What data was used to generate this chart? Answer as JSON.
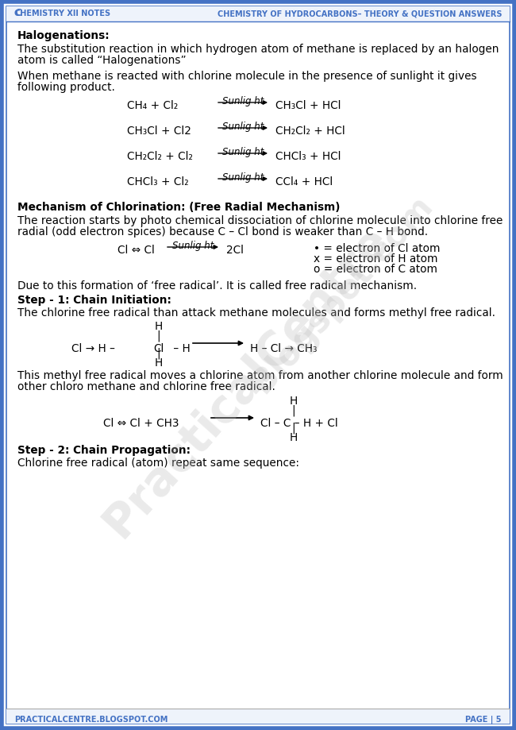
{
  "page_bg": "#ffffff",
  "border_color": "#4472c4",
  "header_left": "Chemistry XII Notes",
  "header_right": "Chemistry Of Hydrocarbons– Theory & Question Answers",
  "footer_left": "PracticalCentre.Blogspot.com",
  "footer_right": "Page | 5",
  "body_text_color": "#000000",
  "title1": "Halogenations:",
  "para1a": "The substitution reaction in which hydrogen atom of methane is replaced by an halogen",
  "para1b": "atom is called “Halogenations”",
  "para2a": "When methane is reacted with chlorine molecule in the presence of sunlight it gives",
  "para2b": "following product.",
  "rxn1_left": "CH₄ + Cl₂",
  "rxn1_label": "Sunlig ht",
  "rxn1_right": "CH₃Cl + HCl",
  "rxn2_left": "CH₃Cl + Cl2",
  "rxn2_label": "Sunlig ht",
  "rxn2_right": "CH₂Cl₂ + HCl",
  "rxn3_left": "CH₂Cl₂ + Cl₂",
  "rxn3_label": "Sunlig ht",
  "rxn3_right": "CHCl₃ + HCl",
  "rxn4_left": "CHCl₃ + Cl₂",
  "rxn4_label": "Sunlig ht",
  "rxn4_right": "CCl₄ + HCl",
  "title2": "Mechanism of Chlorination: (Free Radial Mechanism)",
  "para3a": "The reaction starts by photo chemical dissociation of chlorine molecule into chlorine free",
  "para3b": "radial (odd electron spices) because C – Cl bond is weaker than C – H bond.",
  "rxn5_left": "Cl ⇔ Cl",
  "rxn5_label": "Sunlig ht",
  "rxn5_right": "2Cl",
  "legend1": "• = electron of Cl atom",
  "legend2": "x = electron of H atom",
  "legend3": "o = electron of C atom",
  "para4": "Due to this formation of ‘free radical’. It is called free radical mechanism.",
  "title3": "Step - 1: Chain Initiation:",
  "para5": "The chlorine free radical than attack methane molecules and forms methyl free radical.",
  "para6a": "This methyl free radical moves a chlorine atom from another chlorine molecule and form",
  "para6b": "other chloro methane and chlorine free radical.",
  "step2_left": "Cl ⇔ Cl + CH3",
  "step2_right": "Cl – C – H + Cl",
  "title4": "Step - 2: Chain Propagation:",
  "para7": "Chlorine free radical (atom) repeat same sequence:"
}
